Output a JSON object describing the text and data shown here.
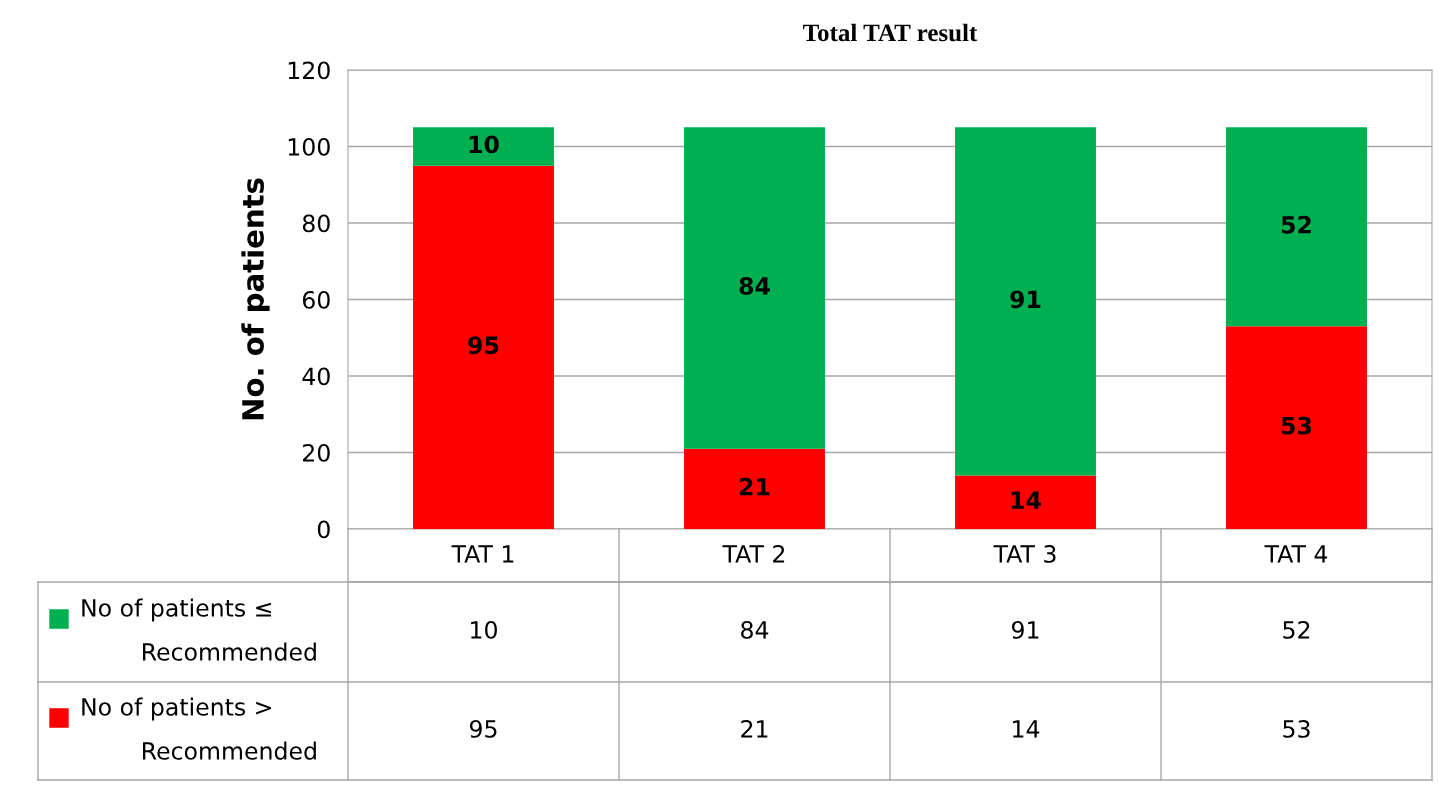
{
  "chart_data": {
    "type": "bar",
    "title": "Total TAT result",
    "ylabel": "No. of patients",
    "categories": [
      "TAT 1",
      "TAT 2",
      "TAT 3",
      "TAT 4"
    ],
    "stacked": true,
    "series": [
      {
        "name": "No of patients > Recommended",
        "color": "#ff0000",
        "values": [
          95,
          21,
          14,
          53
        ],
        "value_labels": [
          "95",
          "21",
          "14",
          "53"
        ]
      },
      {
        "name": "No of patients ≤ Recommended",
        "color": "#00b050",
        "values": [
          10,
          84,
          91,
          52
        ],
        "value_labels": [
          "10",
          "84",
          "91",
          "52"
        ]
      }
    ],
    "legend": "bottom left",
    "annotations": [
      "10",
      "84",
      "91",
      "52",
      "95",
      "21",
      "14",
      "53"
    ],
    "ylim": [
      0,
      120
    ],
    "yticks": [
      0,
      20,
      40,
      60,
      80,
      100,
      120
    ],
    "grid": "y"
  }
}
